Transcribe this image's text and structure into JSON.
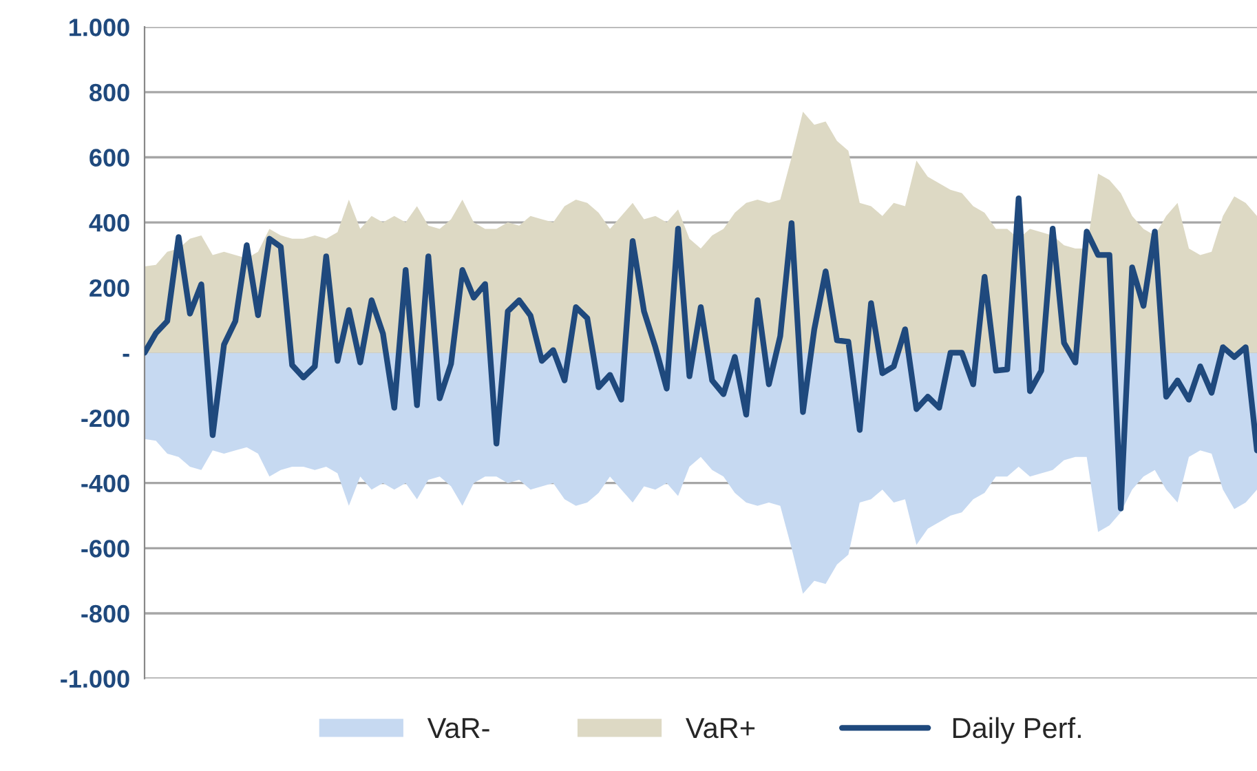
{
  "chart_data": {
    "type": "area",
    "categories": [
      null,
      null,
      null,
      null,
      null,
      null,
      null,
      null,
      null,
      null,
      null,
      null,
      null,
      null,
      null,
      null,
      null,
      null,
      null,
      null,
      null,
      null,
      null,
      null,
      null,
      null,
      null,
      null,
      null,
      null,
      null,
      null,
      null,
      null,
      null,
      null,
      null,
      null,
      null,
      null,
      null,
      null,
      null,
      null,
      null,
      null,
      null,
      null,
      null,
      null,
      null,
      null,
      null,
      null,
      null,
      null,
      null,
      null,
      null,
      null,
      null,
      null,
      null,
      null,
      null,
      null,
      null,
      null,
      null,
      null,
      null,
      null,
      null,
      null,
      null,
      null,
      null,
      null,
      null,
      null,
      null,
      null,
      null,
      null,
      null,
      null,
      null,
      null,
      null,
      null,
      null,
      null,
      null,
      null,
      null,
      null,
      null,
      null,
      null
    ],
    "series": [
      {
        "name": "VaR-",
        "color": "#c6d9f1",
        "values": [
          -265,
          -270,
          -310,
          -320,
          -350,
          -360,
          -300,
          -310,
          -300,
          -290,
          -310,
          -380,
          -360,
          -350,
          -350,
          -360,
          -350,
          -370,
          -470,
          -380,
          -420,
          -400,
          -420,
          -400,
          -450,
          -390,
          -380,
          -410,
          -470,
          -400,
          -380,
          -380,
          -400,
          -390,
          -420,
          -410,
          -400,
          -450,
          -470,
          -460,
          -430,
          -380,
          -420,
          -460,
          -410,
          -420,
          -400,
          -440,
          -350,
          -320,
          -360,
          -380,
          -430,
          -460,
          -470,
          -460,
          -470,
          -600,
          -740,
          -700,
          -710,
          -650,
          -620,
          -460,
          -450,
          -420,
          -460,
          -450,
          -590,
          -540,
          -520,
          -500,
          -490,
          -450,
          -430,
          -380,
          -380,
          -350,
          -380,
          -370,
          -360,
          -330,
          -320,
          -320,
          -550,
          -530,
          -490,
          -420,
          -380,
          -360,
          -420,
          -460,
          -320,
          -300,
          -310,
          -420,
          -480,
          -460,
          -420
        ]
      },
      {
        "name": "VaR+",
        "color": "#ddd9c4",
        "values": [
          265,
          270,
          310,
          320,
          350,
          360,
          300,
          310,
          300,
          290,
          310,
          380,
          360,
          350,
          350,
          360,
          350,
          370,
          470,
          380,
          420,
          400,
          420,
          400,
          450,
          390,
          380,
          410,
          470,
          400,
          380,
          380,
          400,
          390,
          420,
          410,
          400,
          450,
          470,
          460,
          430,
          380,
          420,
          460,
          410,
          420,
          400,
          440,
          350,
          320,
          360,
          380,
          430,
          460,
          470,
          460,
          470,
          600,
          740,
          700,
          710,
          650,
          620,
          460,
          450,
          420,
          460,
          450,
          590,
          540,
          520,
          500,
          490,
          450,
          430,
          380,
          380,
          350,
          380,
          370,
          360,
          330,
          320,
          320,
          550,
          530,
          490,
          420,
          380,
          360,
          420,
          460,
          320,
          300,
          310,
          420,
          480,
          460,
          420
        ]
      },
      {
        "name": "Daily Perf.",
        "type": "line",
        "color": "#1f497d",
        "values": [
          0,
          60,
          97,
          355,
          120,
          210,
          -253,
          25,
          97,
          330,
          115,
          350,
          325,
          -38,
          -76,
          -42,
          296,
          -25,
          131,
          -30,
          161,
          59,
          -169,
          254,
          -161,
          296,
          -140,
          -34,
          254,
          169,
          211,
          -279,
          127,
          161,
          114,
          -25,
          8,
          -85,
          140,
          106,
          -106,
          -68,
          -144,
          343,
          127,
          17,
          -110,
          381,
          -72,
          140,
          -85,
          -127,
          -13,
          -190,
          161,
          -97,
          51,
          398,
          -182,
          72,
          250,
          38,
          34,
          -237,
          152,
          -63,
          -42,
          72,
          -173,
          -135,
          -169,
          0,
          0,
          -97,
          233,
          -55,
          -51,
          474,
          -118,
          -55,
          381,
          30,
          -30,
          372,
          300,
          300,
          -478,
          262,
          144,
          372,
          -135,
          -85,
          -144,
          -42,
          -123,
          17,
          -13,
          17,
          -300
        ]
      }
    ],
    "ylim": [
      -1000,
      1000
    ],
    "yticks": [
      {
        "value": 1000,
        "label": "1.000"
      },
      800,
      600,
      400,
      200,
      {
        "value": 0,
        "label": "-"
      },
      -200,
      -400,
      -600,
      -800,
      {
        "value": -1000,
        "label": "-1.000"
      }
    ],
    "grid": "y",
    "legend": "bottom",
    "tick_labels": "y",
    "line_style": "solid",
    "marker": "none"
  }
}
